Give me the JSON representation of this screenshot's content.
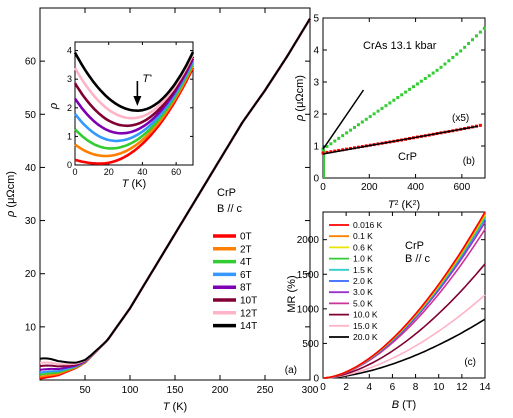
{
  "chart_data": [
    {
      "panel": "(a)",
      "type": "line",
      "xlabel_var": "T",
      "xlabel_unit": " (K)",
      "ylabel_var": "ρ",
      "ylabel_unit": " (μΩcm)",
      "xlim": [
        0,
        300
      ],
      "ylim": [
        0,
        70
      ],
      "xticks": [
        50,
        100,
        150,
        200,
        250,
        300
      ],
      "yticks": [
        10,
        20,
        30,
        40,
        50,
        60
      ],
      "annotation_line1": "CrP",
      "annotation_line2": "B // c",
      "legend_placement": "right",
      "series": [
        {
          "name": "0T",
          "color": "#ff0000",
          "low_T_rho": 0.3
        },
        {
          "name": "2T",
          "color": "#ff8000",
          "low_T_rho": 0.6
        },
        {
          "name": "4T",
          "color": "#33cc33",
          "low_T_rho": 1.0
        },
        {
          "name": "6T",
          "color": "#3399ff",
          "low_T_rho": 1.4
        },
        {
          "name": "8T",
          "color": "#7f00b3",
          "low_T_rho": 1.9
        },
        {
          "name": "10T",
          "color": "#800033",
          "low_T_rho": 2.6
        },
        {
          "name": "12T",
          "color": "#ffb3c6",
          "low_T_rho": 3.2
        },
        {
          "name": "14T",
          "color": "#000000",
          "low_T_rho": 4.0
        }
      ],
      "curve": {
        "x": [
          0,
          20,
          40,
          50,
          75,
          100,
          125,
          150,
          175,
          200,
          225,
          250,
          275,
          300
        ],
        "y": [
          0.3,
          0.9,
          2.3,
          3.3,
          7.5,
          13.5,
          20.5,
          27.5,
          34.5,
          41.5,
          48.5,
          54.5,
          61.0,
          68.0
        ]
      }
    },
    {
      "panel": "inset of (a)",
      "type": "line",
      "xlabel_var": "T",
      "xlabel_unit": " (K)",
      "ylabel_var": "ρ",
      "xlim": [
        0,
        70
      ],
      "ylim": [
        0,
        4.3
      ],
      "xticks": [
        0,
        20,
        40,
        60
      ],
      "yticks": [
        0,
        1,
        2,
        3,
        4
      ],
      "annotation": "T*",
      "arrow_at_T": 37,
      "minimum_T": 37
    },
    {
      "panel": "(b)",
      "type": "line",
      "xlabel_var": "T",
      "xlabel_sup": "2",
      "xlabel_unit": " (K",
      "xlabel_unit_sup": "2",
      "xlabel_close": ")",
      "ylabel_var": "ρ",
      "ylabel_unit": " (μΩcm)",
      "xlim": [
        0,
        700
      ],
      "ylim": [
        0,
        5
      ],
      "xticks": [
        0,
        200,
        400,
        600
      ],
      "yticks": [
        0,
        1,
        2,
        3,
        4,
        5
      ],
      "series": [
        {
          "name": "CrAs 13.1 kbar",
          "color": "#33cc33",
          "style": "dots",
          "x": [
            0,
            50,
            100,
            150,
            200,
            250,
            300,
            350,
            400,
            450,
            500,
            550,
            600,
            650,
            700
          ],
          "y": [
            0.9,
            1.15,
            1.4,
            1.65,
            1.9,
            2.15,
            2.4,
            2.65,
            2.9,
            3.15,
            3.4,
            3.7,
            4.0,
            4.35,
            4.7
          ]
        },
        {
          "name": "CrAs fit",
          "color": "#000000",
          "style": "line",
          "x": [
            0,
            175
          ],
          "y": [
            0.9,
            2.75
          ]
        },
        {
          "name": "CrP",
          "scale_label": "(x5)",
          "color": "#ff0000",
          "style": "dots",
          "x": [
            0,
            50,
            100,
            150,
            200,
            250,
            300,
            350,
            400,
            450,
            500,
            550,
            600,
            650,
            690
          ],
          "y": [
            0.78,
            0.84,
            0.9,
            0.96,
            1.02,
            1.08,
            1.14,
            1.2,
            1.27,
            1.33,
            1.4,
            1.46,
            1.53,
            1.6,
            1.66
          ]
        },
        {
          "name": "CrP fit",
          "color": "#000000",
          "style": "line",
          "x": [
            0,
            670
          ],
          "y": [
            0.75,
            1.62
          ]
        }
      ],
      "left_axis_rise": {
        "x": 0,
        "y0": 0,
        "y1": 0.9
      },
      "crp_label": "CrP",
      "cras_label": "CrAs 13.1 kbar",
      "scale_label": "(x5)"
    },
    {
      "panel": "(c)",
      "type": "line",
      "xlabel_var": "B",
      "xlabel_unit": " (T)",
      "ylabel": "MR (%)",
      "xlim": [
        0,
        14
      ],
      "ylim": [
        0,
        2400
      ],
      "xticks": [
        0,
        2,
        4,
        6,
        8,
        10,
        12,
        14
      ],
      "yticks": [
        0,
        500,
        1000,
        1500,
        2000
      ],
      "annotation_line1": "CrP",
      "annotation_line2": "B // c",
      "legend_placement": "top-left",
      "series": [
        {
          "name": "0.016 K",
          "color": "#ff0000",
          "mr14": 2400
        },
        {
          "name": "0.1 K",
          "color": "#ff8000",
          "mr14": 2380
        },
        {
          "name": "0.6 K",
          "color": "#e6e600",
          "mr14": 2360
        },
        {
          "name": "1.0 K",
          "color": "#33cc33",
          "mr14": 2340
        },
        {
          "name": "1.5 K",
          "color": "#33cccc",
          "mr14": 2320
        },
        {
          "name": "2.0 K",
          "color": "#3366ff",
          "mr14": 2300
        },
        {
          "name": "3.0 K",
          "color": "#9933cc",
          "mr14": 2250
        },
        {
          "name": "5.0 K",
          "color": "#cc3399",
          "mr14": 2150
        },
        {
          "name": "10.0 K",
          "color": "#800033",
          "mr14": 1650
        },
        {
          "name": "15.0 K",
          "color": "#ffb3c6",
          "mr14": 1200
        },
        {
          "name": "20.0 K",
          "color": "#000000",
          "mr14": 850
        }
      ]
    }
  ]
}
